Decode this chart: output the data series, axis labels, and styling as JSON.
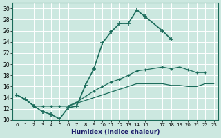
{
  "xlabel": "Humidex (Indice chaleur)",
  "bg_color": "#cce8e0",
  "line_color": "#1a6b5a",
  "xlim": [
    -0.5,
    23.5
  ],
  "ylim": [
    10,
    31
  ],
  "xticks": [
    0,
    1,
    2,
    3,
    4,
    5,
    6,
    7,
    8,
    9,
    10,
    11,
    12,
    13,
    14,
    15,
    17,
    18,
    19,
    20,
    21,
    22,
    23
  ],
  "xticklabels": [
    "0",
    "1",
    "2",
    "3",
    "4",
    "5",
    "6",
    "7",
    "8",
    "9",
    "10",
    "11",
    "12",
    "13",
    "14",
    "15",
    "17",
    "18",
    "19",
    "20",
    "21",
    "22",
    "23"
  ],
  "yticks": [
    10,
    12,
    14,
    16,
    18,
    20,
    22,
    24,
    26,
    28,
    30
  ],
  "yticklabels": [
    "10",
    "12",
    "14",
    "16",
    "18",
    "20",
    "22",
    "24",
    "26",
    "28",
    "30"
  ],
  "line1_x": [
    0,
    1,
    2,
    3,
    4,
    5,
    6,
    7,
    8,
    9,
    10,
    11,
    12,
    13,
    14,
    15,
    17,
    18
  ],
  "line1_y": [
    14.5,
    13.7,
    12.5,
    11.5,
    11.0,
    10.2,
    12.2,
    12.5,
    16.2,
    19.2,
    23.8,
    25.8,
    27.3,
    27.3,
    29.7,
    28.5,
    26.0,
    24.5
  ],
  "line2_x": [
    0,
    1,
    2,
    3,
    4,
    5,
    6,
    7,
    8,
    9,
    10,
    11,
    12,
    13,
    14,
    15,
    17,
    18,
    19,
    20,
    21,
    22
  ],
  "line2_y": [
    14.5,
    13.7,
    12.5,
    12.5,
    12.5,
    12.5,
    12.5,
    13.2,
    14.2,
    15.2,
    16.0,
    16.8,
    17.3,
    18.0,
    18.8,
    19.0,
    19.5,
    19.2,
    19.5,
    19.0,
    18.5,
    18.5
  ],
  "line3_x": [
    0,
    1,
    2,
    3,
    4,
    5,
    6,
    7,
    8,
    9,
    10,
    11,
    12,
    13,
    14,
    15,
    17,
    18,
    19,
    20,
    21,
    22,
    23
  ],
  "line3_y": [
    14.5,
    13.7,
    12.5,
    12.5,
    12.5,
    12.5,
    12.5,
    13.0,
    13.5,
    14.0,
    14.5,
    15.0,
    15.5,
    16.0,
    16.5,
    16.5,
    16.5,
    16.2,
    16.2,
    16.0,
    16.0,
    16.5,
    16.5
  ]
}
